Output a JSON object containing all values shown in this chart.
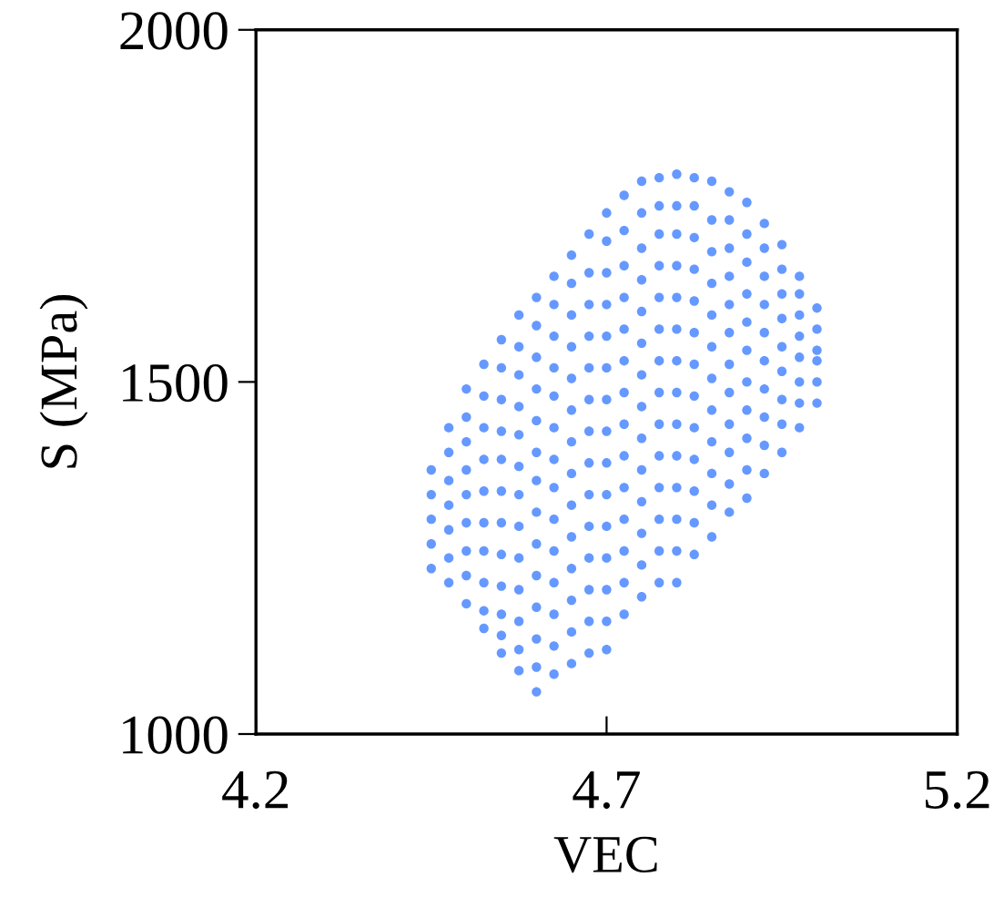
{
  "chart_data": {
    "type": "scatter",
    "xlabel": "VEC",
    "ylabel": "S (MPa)",
    "xlim": [
      4.2,
      5.2
    ],
    "xticks": [
      4.2,
      4.7,
      5.2
    ],
    "ylim": [
      1000,
      2000
    ],
    "yticks": [
      1000,
      1500,
      2000
    ],
    "grid": false,
    "legend": false,
    "marker": "circle",
    "series": [
      {
        "color": "#6699ff",
        "x": [
          4.45,
          4.45,
          4.45,
          4.45,
          4.45
        ],
        "values": [
          1235,
          1270,
          1305,
          1340,
          1375
        ]
      },
      {
        "color": "#6699ff",
        "x": [
          4.475,
          4.475,
          4.475,
          4.475,
          4.475,
          4.475,
          4.475
        ],
        "values": [
          1215,
          1250,
          1290,
          1325,
          1360,
          1400,
          1435
        ]
      },
      {
        "color": "#6699ff",
        "x": [
          4.5,
          4.5,
          4.5,
          4.5,
          4.5,
          4.5,
          4.5,
          4.5,
          4.5
        ],
        "values": [
          1185,
          1225,
          1260,
          1300,
          1340,
          1375,
          1415,
          1450,
          1490
        ]
      },
      {
        "color": "#6699ff",
        "x": [
          4.525,
          4.525,
          4.525,
          4.525,
          4.525,
          4.525,
          4.525,
          4.525,
          4.525,
          4.525
        ],
        "values": [
          1150,
          1175,
          1215,
          1260,
          1300,
          1345,
          1390,
          1435,
          1480,
          1525
        ]
      },
      {
        "color": "#6699ff",
        "x": [
          4.55,
          4.55,
          4.55,
          4.55,
          4.55,
          4.55,
          4.55,
          4.55,
          4.55,
          4.55,
          4.55,
          4.55
        ],
        "values": [
          1115,
          1140,
          1170,
          1210,
          1255,
          1300,
          1345,
          1390,
          1430,
          1475,
          1520,
          1560
        ]
      },
      {
        "color": "#6699ff",
        "x": [
          4.575,
          4.575,
          4.575,
          4.575,
          4.575,
          4.575,
          4.575,
          4.575,
          4.575,
          4.575,
          4.575,
          4.575,
          4.575
        ],
        "values": [
          1090,
          1120,
          1160,
          1205,
          1250,
          1295,
          1340,
          1380,
          1425,
          1465,
          1510,
          1550,
          1595
        ]
      },
      {
        "color": "#6699ff",
        "x": [
          4.6,
          4.6,
          4.6,
          4.6,
          4.6,
          4.6,
          4.6,
          4.6,
          4.6,
          4.6,
          4.6,
          4.6,
          4.6,
          4.6
        ],
        "values": [
          1060,
          1095,
          1135,
          1180,
          1225,
          1270,
          1315,
          1360,
          1400,
          1445,
          1490,
          1535,
          1580,
          1620
        ]
      },
      {
        "color": "#6699ff",
        "x": [
          4.625,
          4.625,
          4.625,
          4.625,
          4.625,
          4.625,
          4.625,
          4.625,
          4.625,
          4.625,
          4.625,
          4.625,
          4.625,
          4.625
        ],
        "values": [
          1085,
          1125,
          1170,
          1215,
          1260,
          1305,
          1350,
          1390,
          1435,
          1480,
          1520,
          1565,
          1610,
          1650
        ]
      },
      {
        "color": "#6699ff",
        "x": [
          4.65,
          4.65,
          4.65,
          4.65,
          4.65,
          4.65,
          4.65,
          4.65,
          4.65,
          4.65,
          4.65,
          4.65,
          4.65,
          4.65
        ],
        "values": [
          1100,
          1145,
          1190,
          1235,
          1280,
          1325,
          1370,
          1415,
          1460,
          1505,
          1550,
          1595,
          1640,
          1680
        ]
      },
      {
        "color": "#6699ff",
        "x": [
          4.675,
          4.675,
          4.675,
          4.675,
          4.675,
          4.675,
          4.675,
          4.675,
          4.675,
          4.675,
          4.675,
          4.675,
          4.675,
          4.675
        ],
        "values": [
          1115,
          1160,
          1205,
          1250,
          1295,
          1340,
          1385,
          1430,
          1475,
          1520,
          1565,
          1610,
          1655,
          1710
        ]
      },
      {
        "color": "#6699ff",
        "x": [
          4.7,
          4.7,
          4.7,
          4.7,
          4.7,
          4.7,
          4.7,
          4.7,
          4.7,
          4.7,
          4.7,
          4.7,
          4.7,
          4.7,
          4.7
        ],
        "values": [
          1120,
          1160,
          1205,
          1250,
          1295,
          1340,
          1385,
          1430,
          1475,
          1520,
          1565,
          1610,
          1655,
          1700,
          1740
        ]
      },
      {
        "color": "#6699ff",
        "x": [
          4.725,
          4.725,
          4.725,
          4.725,
          4.725,
          4.725,
          4.725,
          4.725,
          4.725,
          4.725,
          4.725,
          4.725,
          4.725,
          4.725
        ],
        "values": [
          1170,
          1215,
          1260,
          1305,
          1350,
          1395,
          1440,
          1485,
          1530,
          1575,
          1620,
          1665,
          1715,
          1765
        ]
      },
      {
        "color": "#6699ff",
        "x": [
          4.75,
          4.75,
          4.75,
          4.75,
          4.75,
          4.75,
          4.75,
          4.75,
          4.75,
          4.75,
          4.75,
          4.75,
          4.75,
          4.75
        ],
        "values": [
          1195,
          1240,
          1285,
          1330,
          1375,
          1420,
          1465,
          1510,
          1555,
          1600,
          1645,
          1690,
          1740,
          1785
        ]
      },
      {
        "color": "#6699ff",
        "x": [
          4.775,
          4.775,
          4.775,
          4.775,
          4.775,
          4.775,
          4.775,
          4.775,
          4.775,
          4.775,
          4.775,
          4.775,
          4.775,
          4.775
        ],
        "values": [
          1215,
          1260,
          1305,
          1350,
          1395,
          1440,
          1485,
          1530,
          1575,
          1620,
          1665,
          1710,
          1750,
          1790
        ]
      },
      {
        "color": "#6699ff",
        "x": [
          4.8,
          4.8,
          4.8,
          4.8,
          4.8,
          4.8,
          4.8,
          4.8,
          4.8,
          4.8,
          4.8,
          4.8,
          4.8,
          4.8
        ],
        "values": [
          1215,
          1260,
          1305,
          1350,
          1395,
          1440,
          1485,
          1530,
          1575,
          1620,
          1665,
          1710,
          1750,
          1795
        ]
      },
      {
        "color": "#6699ff",
        "x": [
          4.825,
          4.825,
          4.825,
          4.825,
          4.825,
          4.825,
          4.825,
          4.825,
          4.825,
          4.825,
          4.825,
          4.825,
          4.825
        ],
        "values": [
          1255,
          1300,
          1345,
          1390,
          1435,
          1480,
          1525,
          1570,
          1615,
          1660,
          1705,
          1750,
          1790
        ]
      },
      {
        "color": "#6699ff",
        "x": [
          4.85,
          4.85,
          4.85,
          4.85,
          4.85,
          4.85,
          4.85,
          4.85,
          4.85,
          4.85,
          4.85,
          4.85
        ],
        "values": [
          1280,
          1325,
          1370,
          1415,
          1460,
          1505,
          1550,
          1595,
          1640,
          1685,
          1730,
          1785
        ]
      },
      {
        "color": "#6699ff",
        "x": [
          4.875,
          4.875,
          4.875,
          4.875,
          4.875,
          4.875,
          4.875,
          4.875,
          4.875,
          4.875,
          4.875,
          4.875
        ],
        "values": [
          1315,
          1355,
          1400,
          1440,
          1485,
          1525,
          1570,
          1610,
          1650,
          1690,
          1730,
          1770
        ]
      },
      {
        "color": "#6699ff",
        "x": [
          4.9,
          4.9,
          4.9,
          4.9,
          4.9,
          4.9,
          4.9,
          4.9,
          4.9,
          4.9,
          4.9
        ],
        "values": [
          1335,
          1375,
          1420,
          1460,
          1500,
          1545,
          1585,
          1625,
          1670,
          1710,
          1755
        ]
      },
      {
        "color": "#6699ff",
        "x": [
          4.925,
          4.925,
          4.925,
          4.925,
          4.925,
          4.925,
          4.925,
          4.925,
          4.925,
          4.925
        ],
        "values": [
          1370,
          1410,
          1450,
          1490,
          1530,
          1570,
          1610,
          1650,
          1690,
          1725
        ]
      },
      {
        "color": "#6699ff",
        "x": [
          4.95,
          4.95,
          4.95,
          4.95,
          4.95,
          4.95,
          4.95,
          4.95,
          4.95
        ],
        "values": [
          1400,
          1440,
          1475,
          1515,
          1550,
          1590,
          1625,
          1660,
          1695
        ]
      },
      {
        "color": "#6699ff",
        "x": [
          4.975,
          4.975,
          4.975,
          4.975,
          4.975,
          4.975,
          4.975,
          4.975
        ],
        "values": [
          1435,
          1470,
          1500,
          1535,
          1565,
          1595,
          1625,
          1650
        ]
      },
      {
        "color": "#6699ff",
        "x": [
          5.0,
          5.0,
          5.0,
          5.0,
          5.0,
          5.0
        ],
        "values": [
          1470,
          1500,
          1530,
          1545,
          1575,
          1605
        ]
      }
    ]
  }
}
